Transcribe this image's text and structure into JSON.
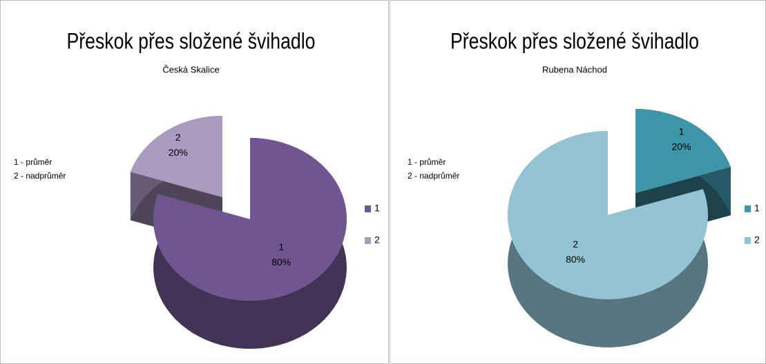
{
  "chart_data": [
    {
      "type": "pie",
      "title": "Přeskok přes složené švihadlo",
      "subtitle": "Česká Skalice",
      "annotations": [
        "1 - průměr",
        "2 - nadprůměr"
      ],
      "categories": [
        "1",
        "2"
      ],
      "values": [
        80,
        20
      ],
      "value_labels": [
        "80%",
        "20%"
      ],
      "colors": [
        "#6f5690",
        "#a99bc0"
      ],
      "exploded": [
        false,
        true
      ],
      "legend": "right"
    },
    {
      "type": "pie",
      "title": "Přeskok přes složené švihadlo",
      "subtitle": "Rubena Náchod",
      "annotations": [
        "1 - průměr",
        "2 - nadprůměr"
      ],
      "categories": [
        "1",
        "2"
      ],
      "values": [
        20,
        80
      ],
      "value_labels": [
        "20%",
        "80%"
      ],
      "colors": [
        "#3e95a8",
        "#92c4d4"
      ],
      "exploded": [
        true,
        false
      ],
      "legend": "right"
    }
  ]
}
